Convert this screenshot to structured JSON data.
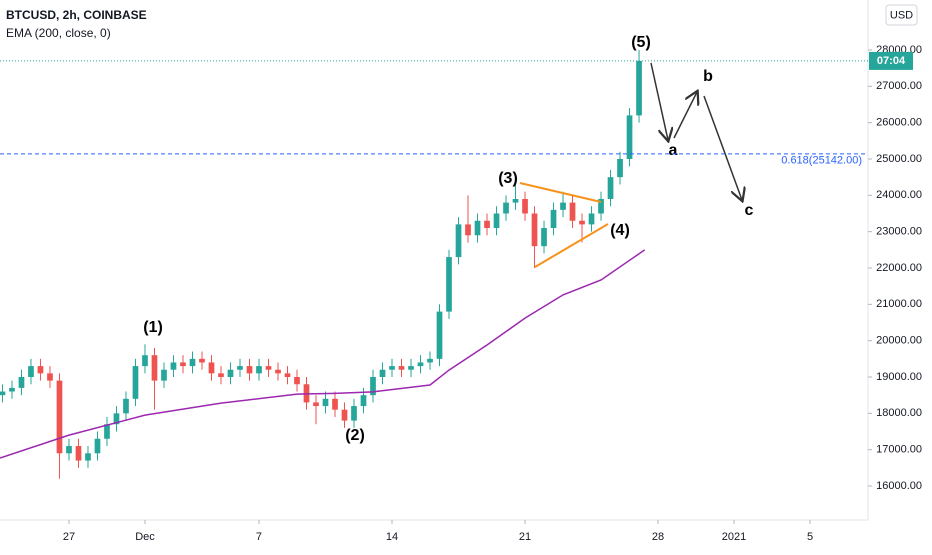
{
  "header": {
    "symbol": "BTCUSD, 2h, COINBASE",
    "indicator": "EMA (200, close, 0)",
    "currency": "USD",
    "countdown": "07:04"
  },
  "chart_data": {
    "type": "candlestick",
    "xlim": [
      -3.63,
      42.05
    ],
    "ylim": [
      15064,
      29376
    ],
    "xticks": [
      {
        "value": 0,
        "label": "27"
      },
      {
        "value": 4,
        "label": "Dec"
      },
      {
        "value": 10,
        "label": "7"
      },
      {
        "value": 17,
        "label": "14"
      },
      {
        "value": 24,
        "label": "21"
      },
      {
        "value": 31,
        "label": "28"
      },
      {
        "value": 35,
        "label": "2021"
      },
      {
        "value": 39,
        "label": "5"
      }
    ],
    "yticks": [
      {
        "value": 16000,
        "label": "16000.00"
      },
      {
        "value": 17000,
        "label": "17000.00"
      },
      {
        "value": 18000,
        "label": "18000.00"
      },
      {
        "value": 19000,
        "label": "19000.00"
      },
      {
        "value": 20000,
        "label": "20000.00"
      },
      {
        "value": 21000,
        "label": "21000.00"
      },
      {
        "value": 22000,
        "label": "22000.00"
      },
      {
        "value": 23000,
        "label": "23000.00"
      },
      {
        "value": 24000,
        "label": "24000.00"
      },
      {
        "value": 25000,
        "label": "25000.00"
      },
      {
        "value": 26000,
        "label": "26000.00"
      },
      {
        "value": 27000,
        "label": "27000.00"
      },
      {
        "value": 28000,
        "label": "28000.00"
      }
    ],
    "x": [
      -3.5,
      -3,
      -2.5,
      -2,
      -1.5,
      -1,
      -0.5,
      0,
      0.5,
      1,
      1.5,
      2,
      2.5,
      3,
      3.5,
      4,
      4.5,
      5,
      5.5,
      6,
      6.5,
      7,
      7.5,
      8,
      8.5,
      9,
      9.5,
      10,
      10.5,
      11,
      11.5,
      12,
      12.5,
      13,
      13.5,
      14,
      14.5,
      15,
      15.5,
      16,
      16.5,
      17,
      17.5,
      18,
      18.5,
      19,
      19.5,
      20,
      20.5,
      21,
      21.5,
      22,
      22.5,
      23,
      23.5,
      24,
      24.5,
      25,
      25.5,
      26,
      26.5,
      27,
      27.5,
      28,
      28.5,
      29,
      29.5,
      30
    ],
    "open": [
      18500,
      18600,
      18700,
      19000,
      19300,
      19100,
      18900,
      16900,
      17100,
      16700,
      16900,
      17300,
      17700,
      18000,
      18400,
      19300,
      19600,
      18900,
      19200,
      19400,
      19300,
      19500,
      19400,
      19100,
      19000,
      19200,
      19300,
      19100,
      19300,
      19200,
      19100,
      19000,
      18800,
      18300,
      18200,
      18400,
      18100,
      17800,
      18200,
      18500,
      19000,
      19200,
      19300,
      19200,
      19300,
      19400,
      19500,
      20800,
      22300,
      23200,
      22900,
      23300,
      23100,
      23500,
      23800,
      23900,
      23500,
      22600,
      23100,
      23600,
      23800,
      23300,
      23200,
      23500,
      23900,
      24500,
      25000,
      26200
    ],
    "high": [
      18800,
      18900,
      19200,
      19500,
      19500,
      19300,
      19100,
      17300,
      17300,
      17100,
      17500,
      17900,
      18200,
      18600,
      19500,
      19900,
      19800,
      19400,
      19600,
      19600,
      19700,
      19700,
      19600,
      19300,
      19400,
      19500,
      19500,
      19500,
      19500,
      19400,
      19300,
      19200,
      19000,
      18500,
      18600,
      18600,
      18300,
      18400,
      18700,
      19200,
      19400,
      19500,
      19500,
      19500,
      19600,
      19700,
      21000,
      22500,
      23400,
      24000,
      23500,
      23500,
      23700,
      24000,
      24300,
      24100,
      23700,
      23300,
      23800,
      24100,
      24000,
      23500,
      23700,
      24100,
      24700,
      25200,
      26400,
      28000
    ],
    "low": [
      18300,
      18400,
      18500,
      18800,
      18900,
      18700,
      16200,
      16700,
      16500,
      16500,
      16700,
      17100,
      17500,
      17800,
      18200,
      19100,
      18100,
      18700,
      19000,
      19100,
      19100,
      19200,
      18900,
      18800,
      18800,
      19000,
      18900,
      18900,
      19000,
      18900,
      18800,
      18600,
      18100,
      17700,
      18000,
      17900,
      17600,
      17600,
      18000,
      18300,
      18800,
      19000,
      19000,
      19000,
      19100,
      19200,
      19300,
      20600,
      22100,
      22700,
      22700,
      22900,
      22900,
      23300,
      23600,
      23300,
      22000,
      22400,
      22900,
      23400,
      23100,
      22700,
      23000,
      23300,
      23700,
      24300,
      24800,
      26000
    ],
    "close": [
      18600,
      18700,
      19000,
      19300,
      19100,
      18900,
      16900,
      17100,
      16700,
      16900,
      17300,
      17700,
      18000,
      18400,
      19300,
      19600,
      18900,
      19200,
      19400,
      19300,
      19500,
      19400,
      19100,
      19000,
      19200,
      19300,
      19100,
      19300,
      19200,
      19100,
      19000,
      18800,
      18300,
      18200,
      18400,
      18100,
      17800,
      18200,
      18500,
      19000,
      19200,
      19300,
      19200,
      19300,
      19400,
      19500,
      20800,
      22300,
      23200,
      22900,
      23300,
      23100,
      23500,
      23800,
      23900,
      23500,
      22600,
      23100,
      23600,
      23800,
      23300,
      23200,
      23500,
      23900,
      24500,
      25000,
      26200,
      27700
    ],
    "colors": {
      "up": "#26a69a",
      "down": "#ef5350",
      "ema": "#9c27b0",
      "level": "#2962ff",
      "last": "#26a69a"
    },
    "ema": {
      "x": [
        -3.63,
        0,
        4,
        8,
        12,
        14,
        16,
        19,
        20,
        22,
        24,
        26,
        28,
        30.3
      ],
      "values": [
        16770,
        17400,
        17950,
        18280,
        18530,
        18550,
        18590,
        18780,
        19190,
        19880,
        20620,
        21260,
        21670,
        22500
      ]
    },
    "levels": [
      {
        "value": 25142,
        "label": "0.618(25142.00)"
      }
    ],
    "annotations": [
      "(1)",
      "(2)",
      "(3)",
      "(4)",
      "(5)",
      "a",
      "b",
      "c"
    ]
  }
}
